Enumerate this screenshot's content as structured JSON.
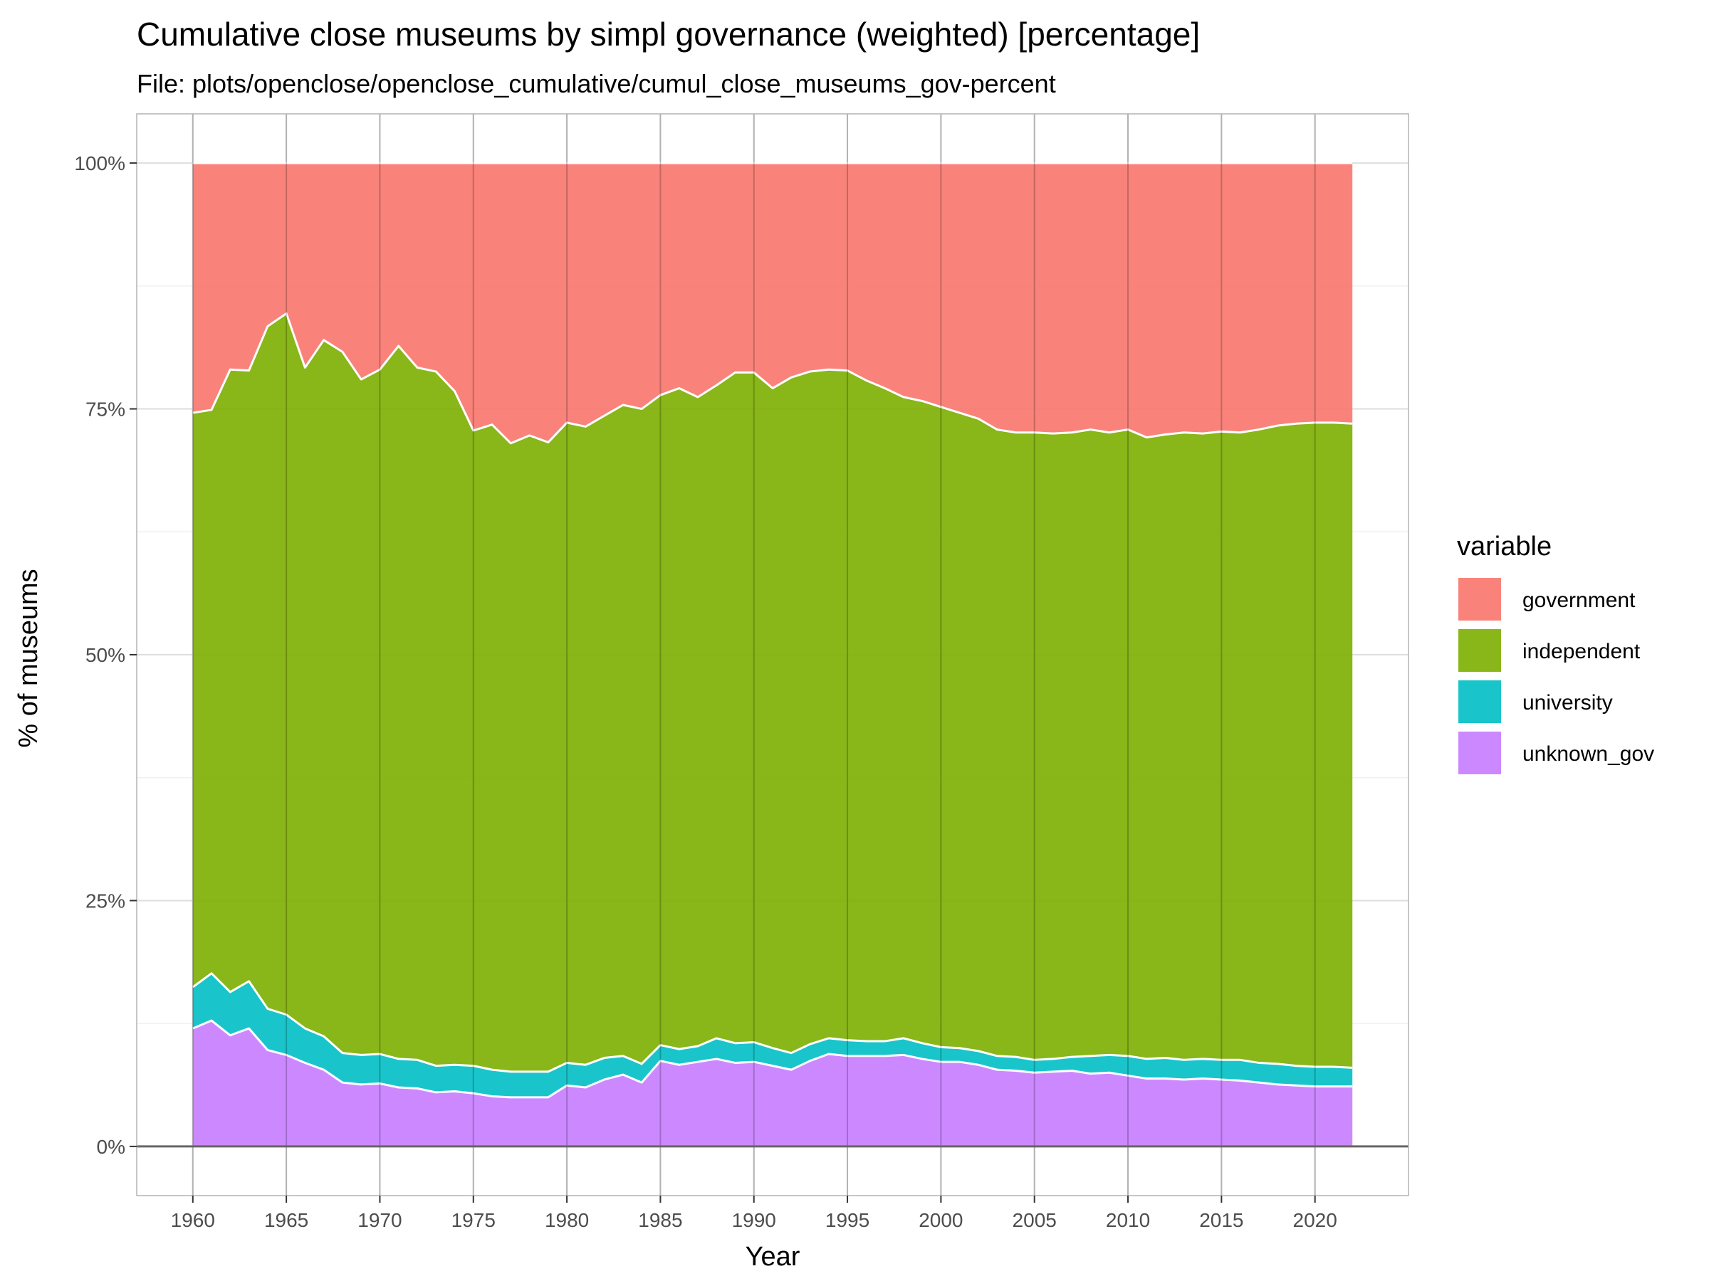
{
  "chart_data": {
    "type": "area",
    "stacked": "percent",
    "title": "Cumulative close museums by simpl governance (weighted) [percentage]",
    "subtitle": "File: plots/openclose/openclose_cumulative/cumul_close_museums_gov-percent",
    "xlabel": "Year",
    "ylabel": "% of museums",
    "xlim": [
      1957,
      2025
    ],
    "ylim": [
      -0.05,
      1.05
    ],
    "x_ticks": [
      1960,
      1965,
      1970,
      1975,
      1980,
      1985,
      1990,
      1995,
      2000,
      2005,
      2010,
      2015,
      2020
    ],
    "y_ticks": [
      0,
      0.25,
      0.5,
      0.75,
      1
    ],
    "y_tick_labels": [
      "0%",
      "25%",
      "50%",
      "75%",
      "100%"
    ],
    "grid": true,
    "legend": {
      "title": "variable",
      "position": "right"
    },
    "x": [
      1960,
      1961,
      1962,
      1963,
      1964,
      1965,
      1966,
      1967,
      1968,
      1969,
      1970,
      1971,
      1972,
      1973,
      1974,
      1975,
      1976,
      1977,
      1978,
      1979,
      1980,
      1981,
      1982,
      1983,
      1984,
      1985,
      1986,
      1987,
      1988,
      1989,
      1990,
      1991,
      1992,
      1993,
      1994,
      1995,
      1996,
      1997,
      1998,
      1999,
      2000,
      2001,
      2002,
      2003,
      2004,
      2005,
      2006,
      2007,
      2008,
      2009,
      2010,
      2011,
      2012,
      2013,
      2014,
      2015,
      2016,
      2017,
      2018,
      2019,
      2020,
      2021,
      2022
    ],
    "series": [
      {
        "name": "government",
        "color": "#F8766D"
      },
      {
        "name": "independent",
        "color": "#7CAE00"
      },
      {
        "name": "university",
        "color": "#00BFC4"
      },
      {
        "name": "unknown_gov",
        "color": "#C77CFF"
      }
    ],
    "cumulative_boundaries": {
      "unknown_gov_top": [
        0.12,
        0.128,
        0.113,
        0.12,
        0.098,
        0.093,
        0.085,
        0.078,
        0.065,
        0.063,
        0.064,
        0.06,
        0.059,
        0.055,
        0.056,
        0.054,
        0.051,
        0.05,
        0.05,
        0.05,
        0.062,
        0.06,
        0.068,
        0.073,
        0.065,
        0.087,
        0.083,
        0.086,
        0.089,
        0.085,
        0.086,
        0.082,
        0.078,
        0.087,
        0.094,
        0.092,
        0.092,
        0.092,
        0.093,
        0.089,
        0.086,
        0.086,
        0.083,
        0.078,
        0.077,
        0.075,
        0.076,
        0.077,
        0.074,
        0.075,
        0.072,
        0.069,
        0.069,
        0.068,
        0.069,
        0.068,
        0.067,
        0.065,
        0.063,
        0.062,
        0.061,
        0.061,
        0.061
      ],
      "university_top": [
        0.162,
        0.176,
        0.157,
        0.168,
        0.14,
        0.134,
        0.12,
        0.112,
        0.095,
        0.093,
        0.094,
        0.089,
        0.088,
        0.082,
        0.083,
        0.082,
        0.078,
        0.076,
        0.076,
        0.076,
        0.085,
        0.083,
        0.09,
        0.092,
        0.084,
        0.103,
        0.099,
        0.102,
        0.11,
        0.105,
        0.106,
        0.1,
        0.095,
        0.104,
        0.11,
        0.108,
        0.107,
        0.107,
        0.11,
        0.105,
        0.101,
        0.1,
        0.097,
        0.092,
        0.091,
        0.088,
        0.089,
        0.091,
        0.092,
        0.093,
        0.092,
        0.089,
        0.09,
        0.088,
        0.089,
        0.088,
        0.088,
        0.085,
        0.084,
        0.082,
        0.081,
        0.081,
        0.08
      ],
      "independent_top": [
        0.746,
        0.749,
        0.79,
        0.789,
        0.834,
        0.847,
        0.792,
        0.82,
        0.808,
        0.78,
        0.79,
        0.814,
        0.792,
        0.788,
        0.768,
        0.728,
        0.734,
        0.715,
        0.723,
        0.716,
        0.736,
        0.732,
        0.743,
        0.754,
        0.75,
        0.764,
        0.771,
        0.762,
        0.774,
        0.787,
        0.787,
        0.771,
        0.782,
        0.788,
        0.79,
        0.789,
        0.779,
        0.771,
        0.762,
        0.758,
        0.752,
        0.746,
        0.74,
        0.729,
        0.726,
        0.726,
        0.725,
        0.726,
        0.729,
        0.726,
        0.729,
        0.721,
        0.724,
        0.726,
        0.725,
        0.727,
        0.726,
        0.729,
        0.733,
        0.735,
        0.736,
        0.736,
        0.735
      ],
      "government_top": [
        1,
        1,
        1,
        1,
        1,
        1,
        1,
        1,
        1,
        1,
        1,
        1,
        1,
        1,
        1,
        1,
        1,
        1,
        1,
        1,
        1,
        1,
        1,
        1,
        1,
        1,
        1,
        1,
        1,
        1,
        1,
        1,
        1,
        1,
        1,
        1,
        1,
        1,
        1,
        1,
        1,
        1,
        1,
        1,
        1,
        1,
        1,
        1,
        1,
        1,
        1,
        1,
        1,
        1,
        1,
        1,
        1,
        1,
        1,
        1,
        1,
        1,
        1
      ]
    }
  }
}
